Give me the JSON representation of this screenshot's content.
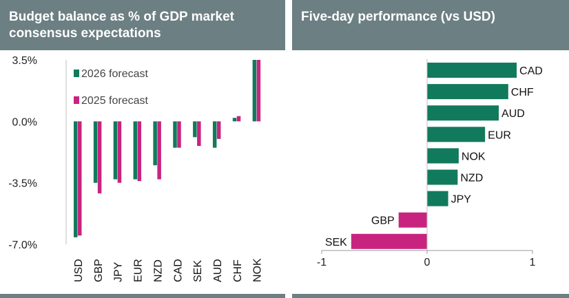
{
  "colors": {
    "header_bg": "#6c7f83",
    "series_2026": "#127a5c",
    "series_2025": "#c8247f",
    "positive": "#127a5c",
    "negative": "#c8247f"
  },
  "chart_data": [
    {
      "type": "bar",
      "title": "Budget balance as % of GDP market consensus expectations",
      "categories": [
        "USD",
        "GBP",
        "JPY",
        "EUR",
        "NZD",
        "CAD",
        "SEK",
        "AUD",
        "CHF",
        "NOK"
      ],
      "series": [
        {
          "name": "2026 forecast",
          "values": [
            -6.6,
            -3.5,
            -3.3,
            -3.3,
            -2.5,
            -1.5,
            -0.9,
            -1.5,
            0.2,
            3.5
          ]
        },
        {
          "name": "2025 forecast",
          "values": [
            -6.5,
            -4.1,
            -3.5,
            -3.4,
            -3.3,
            -1.5,
            -1.4,
            -1.0,
            0.3,
            3.5
          ]
        }
      ],
      "ylim": [
        -7.0,
        3.5
      ],
      "yticks": [
        "3.5%",
        "0.0%",
        "-3.5%",
        "-7.0%"
      ],
      "ytick_values": [
        3.5,
        0.0,
        -3.5,
        -7.0
      ],
      "legend": "top-left",
      "grid": false
    },
    {
      "type": "bar",
      "orientation": "horizontal",
      "title": "Five-day performance (vs USD)",
      "categories": [
        "CAD",
        "CHF",
        "AUD",
        "EUR",
        "NOK",
        "NZD",
        "JPY",
        "GBP",
        "SEK"
      ],
      "values": [
        0.85,
        0.77,
        0.68,
        0.55,
        0.3,
        0.29,
        0.2,
        -0.27,
        -0.72
      ],
      "xlim": [
        -1,
        1
      ],
      "xticks": [
        "-1",
        "0",
        "1"
      ],
      "xtick_values": [
        -1,
        0,
        1
      ],
      "grid": false
    }
  ]
}
